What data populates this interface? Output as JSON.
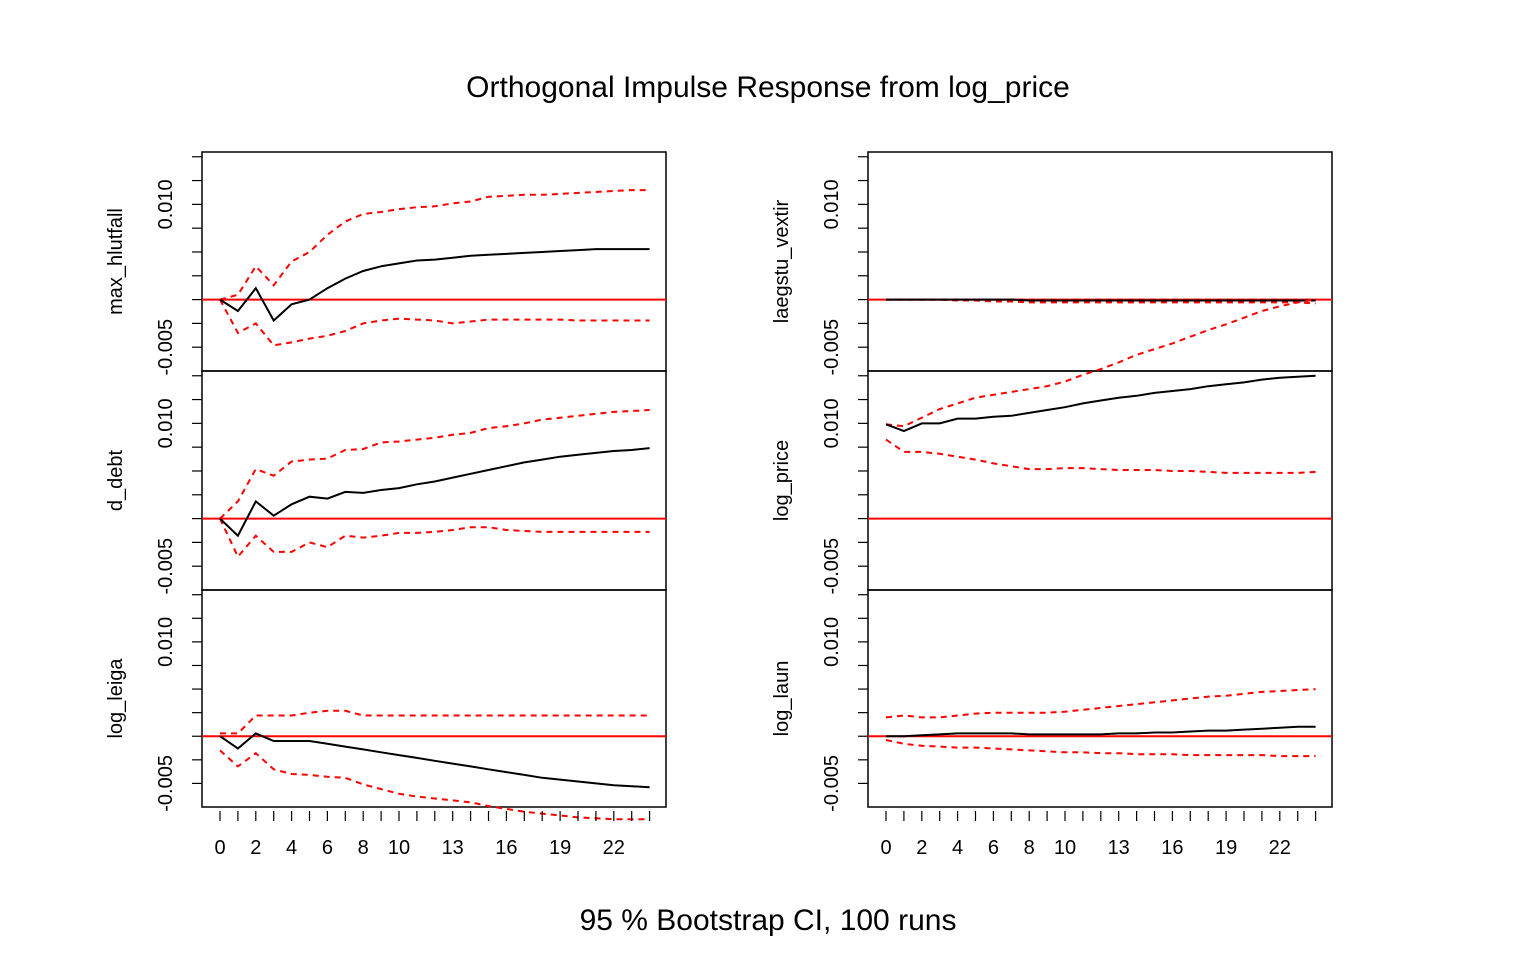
{
  "chart_data": {
    "type": "line",
    "title": "Orthogonal Impulse Response from log_price",
    "caption": "95 % Bootstrap CI,  100 runs",
    "x": [
      0,
      1,
      2,
      3,
      4,
      5,
      6,
      7,
      8,
      9,
      10,
      11,
      12,
      13,
      14,
      15,
      16,
      17,
      18,
      19,
      20,
      21,
      22,
      23,
      24
    ],
    "xtick_labels": [
      "0",
      "2",
      "4",
      "6",
      "8",
      "10",
      "13",
      "16",
      "19",
      "22"
    ],
    "xtick_positions": [
      0,
      2,
      4,
      6,
      8,
      10,
      13,
      16,
      19,
      22
    ],
    "ylim": [
      -0.0075,
      0.0155
    ],
    "ytick_labels": [
      "-0.005",
      "0.010"
    ],
    "ytick_values": [
      -0.005,
      0.01
    ],
    "ytick_minor": [
      -0.005,
      -0.0025,
      0.0,
      0.0025,
      0.005,
      0.0075,
      0.01,
      0.0125,
      0.015
    ],
    "columns": [
      {
        "panels": [
          {
            "ylabel": "max_hlutfall",
            "response": [
              0,
              -0.0012,
              0.0012,
              -0.0022,
              -0.0005,
              0,
              0.0012,
              0.0022,
              0.003,
              0.0035,
              0.0038,
              0.0041,
              0.0042,
              0.0044,
              0.0046,
              0.0047,
              0.0048,
              0.0049,
              0.005,
              0.0051,
              0.0052,
              0.0053,
              0.0053,
              0.0053,
              0.0053
            ],
            "upper": [
              0,
              0.0005,
              0.0035,
              0.0015,
              0.004,
              0.005,
              0.0068,
              0.0082,
              0.009,
              0.0092,
              0.0095,
              0.0097,
              0.0098,
              0.0101,
              0.0103,
              0.0108,
              0.0109,
              0.011,
              0.011,
              0.0111,
              0.0112,
              0.0113,
              0.0114,
              0.0115,
              0.0115
            ],
            "lower": [
              0,
              -0.0035,
              -0.0025,
              -0.0048,
              -0.0045,
              -0.0041,
              -0.0038,
              -0.0033,
              -0.0025,
              -0.0022,
              -0.002,
              -0.0021,
              -0.0022,
              -0.0025,
              -0.0023,
              -0.0021,
              -0.0021,
              -0.0021,
              -0.0021,
              -0.0021,
              -0.0022,
              -0.0022,
              -0.0022,
              -0.0022,
              -0.0022
            ]
          },
          {
            "ylabel": "d_debt",
            "response": [
              0,
              -0.0018,
              0.0018,
              0.0003,
              0.0015,
              0.0023,
              0.0021,
              0.0028,
              0.0027,
              0.003,
              0.0032,
              0.0036,
              0.0039,
              0.0043,
              0.0047,
              0.0051,
              0.0055,
              0.0059,
              0.0062,
              0.0065,
              0.0067,
              0.0069,
              0.0071,
              0.0072,
              0.0074
            ],
            "upper": [
              0,
              0.0018,
              0.0052,
              0.0045,
              0.006,
              0.0062,
              0.0063,
              0.0072,
              0.0073,
              0.008,
              0.0081,
              0.0083,
              0.0085,
              0.0088,
              0.009,
              0.0095,
              0.0097,
              0.01,
              0.0104,
              0.0106,
              0.0108,
              0.011,
              0.0112,
              0.0113,
              0.0114
            ],
            "lower": [
              0,
              -0.004,
              -0.0018,
              -0.0035,
              -0.0035,
              -0.0025,
              -0.003,
              -0.0018,
              -0.002,
              -0.0018,
              -0.0015,
              -0.0015,
              -0.0014,
              -0.0012,
              -0.0009,
              -0.0009,
              -0.0012,
              -0.0013,
              -0.0014,
              -0.0014,
              -0.0014,
              -0.0014,
              -0.0014,
              -0.0014,
              -0.0014
            ]
          },
          {
            "ylabel": "log_leiga",
            "response": [
              0,
              -0.0013,
              0.0003,
              -0.0005,
              -0.0005,
              -0.0005,
              -0.0008,
              -0.0011,
              -0.0014,
              -0.0017,
              -0.002,
              -0.0023,
              -0.0026,
              -0.0029,
              -0.0032,
              -0.0035,
              -0.0038,
              -0.0041,
              -0.0044,
              -0.0046,
              -0.0048,
              -0.005,
              -0.0052,
              -0.0053,
              -0.0054
            ],
            "upper": [
              0.0003,
              0.0003,
              0.0022,
              0.0022,
              0.0022,
              0.0025,
              0.0027,
              0.0027,
              0.0022,
              0.0022,
              0.0022,
              0.0022,
              0.0022,
              0.0022,
              0.0022,
              0.0022,
              0.0022,
              0.0022,
              0.0022,
              0.0022,
              0.0022,
              0.0022,
              0.0022,
              0.0022,
              0.0022
            ],
            "lower": [
              -0.0015,
              -0.0032,
              -0.0018,
              -0.0035,
              -0.004,
              -0.0041,
              -0.0043,
              -0.0044,
              -0.0051,
              -0.0056,
              -0.0061,
              -0.0064,
              -0.0066,
              -0.0068,
              -0.007,
              -0.0074,
              -0.0077,
              -0.008,
              -0.0082,
              -0.0084,
              -0.0086,
              -0.0087,
              -0.0088,
              -0.0088,
              -0.0088
            ]
          }
        ]
      },
      {
        "panels": [
          {
            "ylabel": "laegstu_vextir",
            "response": [
              0,
              0,
              0,
              0,
              0,
              0,
              0,
              0,
              -0.0001,
              -0.0001,
              -0.0001,
              -0.0001,
              -0.0001,
              -0.0001,
              -0.0001,
              -0.0001,
              -0.0001,
              -0.0001,
              -0.0001,
              -0.0001,
              -0.0001,
              -0.0001,
              -0.0001,
              -0.0001,
              -0.0001
            ],
            "upper": [
              0,
              0,
              0,
              0,
              0,
              0,
              0,
              0,
              0,
              0,
              0,
              0,
              0,
              0,
              0,
              0,
              0,
              0,
              0,
              0,
              0,
              0,
              0,
              0,
              0
            ],
            "lower": [
              0,
              0,
              0,
              0,
              -0.0001,
              -0.0001,
              -0.0002,
              -0.0002,
              -0.0003,
              -0.0003,
              -0.0003,
              -0.0003,
              -0.0003,
              -0.0003,
              -0.0003,
              -0.0003,
              -0.0003,
              -0.0003,
              -0.0003,
              -0.0003,
              -0.0003,
              -0.0003,
              -0.0003,
              -0.0003,
              -0.0004
            ]
          },
          {
            "ylabel": "log_price",
            "response": [
              0.0099,
              0.0092,
              0.01,
              0.01,
              0.0105,
              0.0105,
              0.0107,
              0.0108,
              0.0111,
              0.0114,
              0.0117,
              0.0121,
              0.0124,
              0.0127,
              0.0129,
              0.0132,
              0.0134,
              0.0136,
              0.0139,
              0.0141,
              0.0143,
              0.0146,
              0.0148,
              0.0149,
              0.015
            ],
            "upper": [
              0.0099,
              0.0097,
              0.0106,
              0.0115,
              0.0121,
              0.0127,
              0.013,
              0.0133,
              0.0136,
              0.0139,
              0.0144,
              0.0151,
              0.0157,
              0.0164,
              0.0172,
              0.0178,
              0.0184,
              0.0191,
              0.0198,
              0.0204,
              0.0211,
              0.0218,
              0.0223,
              0.0227,
              0.023
            ],
            "lower": [
              0.0083,
              0.007,
              0.007,
              0.0068,
              0.0065,
              0.0062,
              0.0058,
              0.0055,
              0.0052,
              0.0052,
              0.0053,
              0.0053,
              0.0052,
              0.0051,
              0.0051,
              0.0051,
              0.005,
              0.005,
              0.0049,
              0.0048,
              0.0048,
              0.0048,
              0.0048,
              0.0048,
              0.0049
            ]
          },
          {
            "ylabel": "log_laun",
            "response": [
              0,
              0,
              0.0001,
              0.0002,
              0.0003,
              0.0003,
              0.0003,
              0.0003,
              0.0002,
              0.0002,
              0.0002,
              0.0002,
              0.0002,
              0.0003,
              0.0003,
              0.0004,
              0.0004,
              0.0005,
              0.0006,
              0.0006,
              0.0007,
              0.0008,
              0.0009,
              0.001,
              0.001
            ],
            "upper": [
              0.002,
              0.0022,
              0.002,
              0.002,
              0.0022,
              0.0024,
              0.0025,
              0.0025,
              0.0025,
              0.0025,
              0.0026,
              0.0028,
              0.003,
              0.0032,
              0.0034,
              0.0036,
              0.0038,
              0.004,
              0.0042,
              0.0043,
              0.0045,
              0.0047,
              0.0048,
              0.0049,
              0.005
            ],
            "lower": [
              -0.0004,
              -0.0008,
              -0.001,
              -0.0011,
              -0.0012,
              -0.0012,
              -0.0013,
              -0.0014,
              -0.0015,
              -0.0016,
              -0.0017,
              -0.0017,
              -0.0018,
              -0.0018,
              -0.0019,
              -0.0019,
              -0.0019,
              -0.002,
              -0.002,
              -0.002,
              -0.002,
              -0.002,
              -0.0021,
              -0.0021,
              -0.0021
            ]
          }
        ]
      }
    ]
  }
}
